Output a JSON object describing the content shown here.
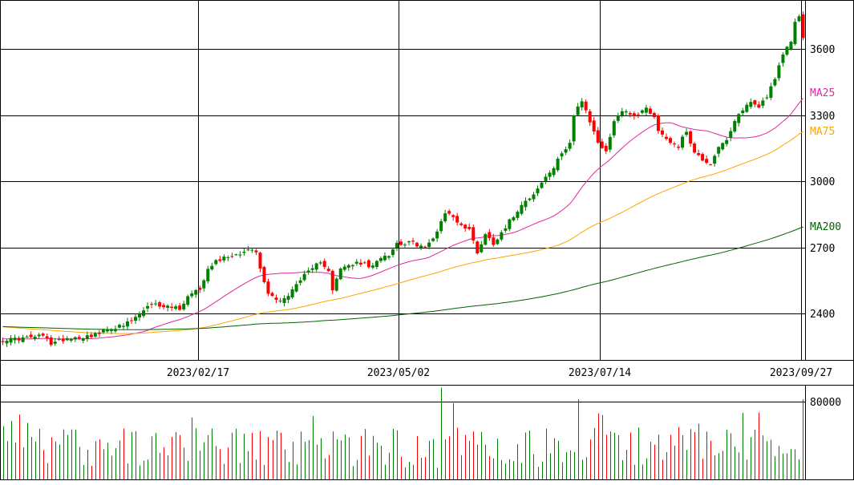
{
  "chart_data": [
    {
      "type": "candlestick",
      "title": "",
      "xlabel": "",
      "ylabel": "",
      "ylim": [
        2190,
        3820
      ],
      "y_ticks": [
        2400,
        2700,
        3000,
        3300,
        3600
      ],
      "y_tick_labels": [
        "2400",
        "2700",
        "3000",
        "3300",
        "3600"
      ],
      "x_tick_labels": [
        "2023/02/17",
        "2023/05/02",
        "2023/07/14",
        "2023/09/27"
      ],
      "bar_count": 200,
      "x_tick_index": [
        49,
        99,
        149,
        199
      ],
      "grid": true,
      "colors": {
        "up": "#008000",
        "down": "#ff0000",
        "ma25": "#e0289c",
        "ma75": "#ffa500",
        "ma200": "#006400",
        "grid": "#000000"
      },
      "moving_averages": [
        {
          "name": "MA25",
          "color": "#e0289c",
          "last": 3380
        },
        {
          "name": "MA75",
          "color": "#ffa500",
          "last": 3240
        },
        {
          "name": "MA200",
          "color": "#006400",
          "last": 2800
        }
      ],
      "close_anchors": [
        [
          0,
          2280
        ],
        [
          6,
          2290
        ],
        [
          10,
          2300
        ],
        [
          12,
          2265
        ],
        [
          16,
          2290
        ],
        [
          20,
          2295
        ],
        [
          24,
          2310
        ],
        [
          27,
          2335
        ],
        [
          30,
          2345
        ],
        [
          33,
          2380
        ],
        [
          36,
          2430
        ],
        [
          38,
          2440
        ],
        [
          42,
          2430
        ],
        [
          44,
          2425
        ],
        [
          47,
          2500
        ],
        [
          49,
          2510
        ],
        [
          51,
          2610
        ],
        [
          53,
          2640
        ],
        [
          56,
          2660
        ],
        [
          58,
          2670
        ],
        [
          61,
          2690
        ],
        [
          63,
          2680
        ],
        [
          64,
          2600
        ],
        [
          66,
          2490
        ],
        [
          69,
          2460
        ],
        [
          71,
          2480
        ],
        [
          74,
          2560
        ],
        [
          77,
          2600
        ],
        [
          79,
          2640
        ],
        [
          81,
          2600
        ],
        [
          82,
          2510
        ],
        [
          84,
          2600
        ],
        [
          86,
          2620
        ],
        [
          89,
          2630
        ],
        [
          92,
          2610
        ],
        [
          94,
          2660
        ],
        [
          96,
          2670
        ],
        [
          98,
          2720
        ],
        [
          102,
          2720
        ],
        [
          105,
          2700
        ],
        [
          107,
          2740
        ],
        [
          110,
          2860
        ],
        [
          112,
          2840
        ],
        [
          114,
          2800
        ],
        [
          116,
          2780
        ],
        [
          118,
          2680
        ],
        [
          120,
          2760
        ],
        [
          122,
          2720
        ],
        [
          126,
          2820
        ],
        [
          128,
          2870
        ],
        [
          130,
          2920
        ],
        [
          132,
          2940
        ],
        [
          135,
          3020
        ],
        [
          137,
          3060
        ],
        [
          139,
          3130
        ],
        [
          141,
          3180
        ],
        [
          142,
          3300
        ],
        [
          143,
          3340
        ],
        [
          144,
          3360
        ],
        [
          146,
          3270
        ],
        [
          148,
          3180
        ],
        [
          150,
          3130
        ],
        [
          152,
          3280
        ],
        [
          154,
          3320
        ],
        [
          156,
          3310
        ],
        [
          158,
          3300
        ],
        [
          160,
          3340
        ],
        [
          162,
          3290
        ],
        [
          163,
          3230
        ],
        [
          166,
          3180
        ],
        [
          168,
          3160
        ],
        [
          170,
          3230
        ],
        [
          172,
          3130
        ],
        [
          174,
          3100
        ],
        [
          176,
          3080
        ],
        [
          178,
          3160
        ],
        [
          180,
          3180
        ],
        [
          182,
          3270
        ],
        [
          184,
          3330
        ],
        [
          186,
          3360
        ],
        [
          188,
          3340
        ],
        [
          190,
          3390
        ],
        [
          192,
          3470
        ],
        [
          194,
          3570
        ],
        [
          196,
          3640
        ],
        [
          197,
          3720
        ],
        [
          198,
          3750
        ],
        [
          199,
          3660
        ]
      ],
      "volume": {
        "ylim": [
          0,
          96000
        ],
        "y_ticks": [
          80000
        ],
        "y_tick_labels": [
          "80000"
        ],
        "spikes": [
          [
            109,
            94000
          ],
          [
            112,
            78000
          ],
          [
            143,
            82000
          ],
          [
            149,
            66000
          ],
          [
            184,
            68000
          ],
          [
            199,
            82000
          ]
        ]
      }
    }
  ]
}
